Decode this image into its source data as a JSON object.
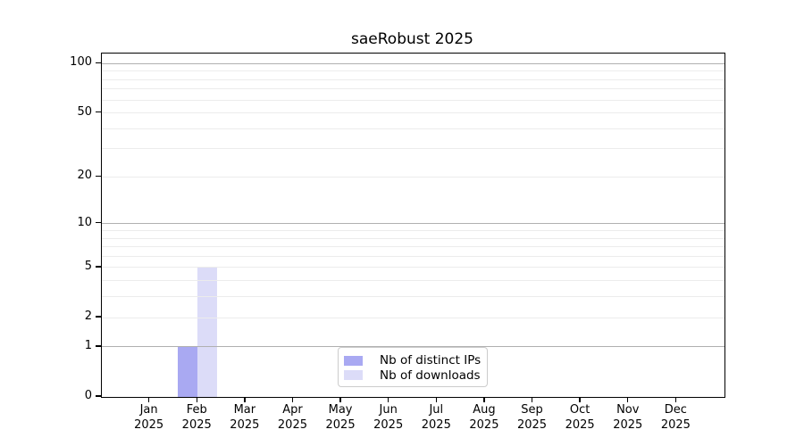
{
  "chart_data": {
    "type": "bar",
    "title": "saeRobust 2025",
    "categories": [
      "Jan",
      "Feb",
      "Mar",
      "Apr",
      "May",
      "Jun",
      "Jul",
      "Aug",
      "Sep",
      "Oct",
      "Nov",
      "Dec"
    ],
    "category_year_line": "2025",
    "series": [
      {
        "name": "Nb of distinct IPs",
        "color": "#a9a9f2",
        "values": [
          0,
          1,
          0,
          0,
          0,
          0,
          0,
          0,
          0,
          0,
          0,
          0
        ]
      },
      {
        "name": "Nb of downloads",
        "color": "#dcdcf8",
        "values": [
          0,
          5,
          0,
          0,
          0,
          0,
          0,
          0,
          0,
          0,
          0,
          0
        ]
      }
    ],
    "scale": "log1p",
    "ylim": [
      0,
      115
    ],
    "yticks": [
      0,
      1,
      2,
      5,
      10,
      20,
      50,
      100
    ],
    "grid": {
      "major_lines": [
        1,
        10,
        100
      ],
      "minor_lines": [
        2,
        3,
        4,
        5,
        6,
        7,
        8,
        9,
        20,
        30,
        40,
        50,
        60,
        70,
        80,
        90
      ],
      "major_color": "#b0b0b0",
      "minor_color": "#ececec"
    },
    "legend": {
      "position": "lower center"
    },
    "colors": {
      "axis": "#000000",
      "background": "#ffffff",
      "text": "#000000"
    }
  }
}
